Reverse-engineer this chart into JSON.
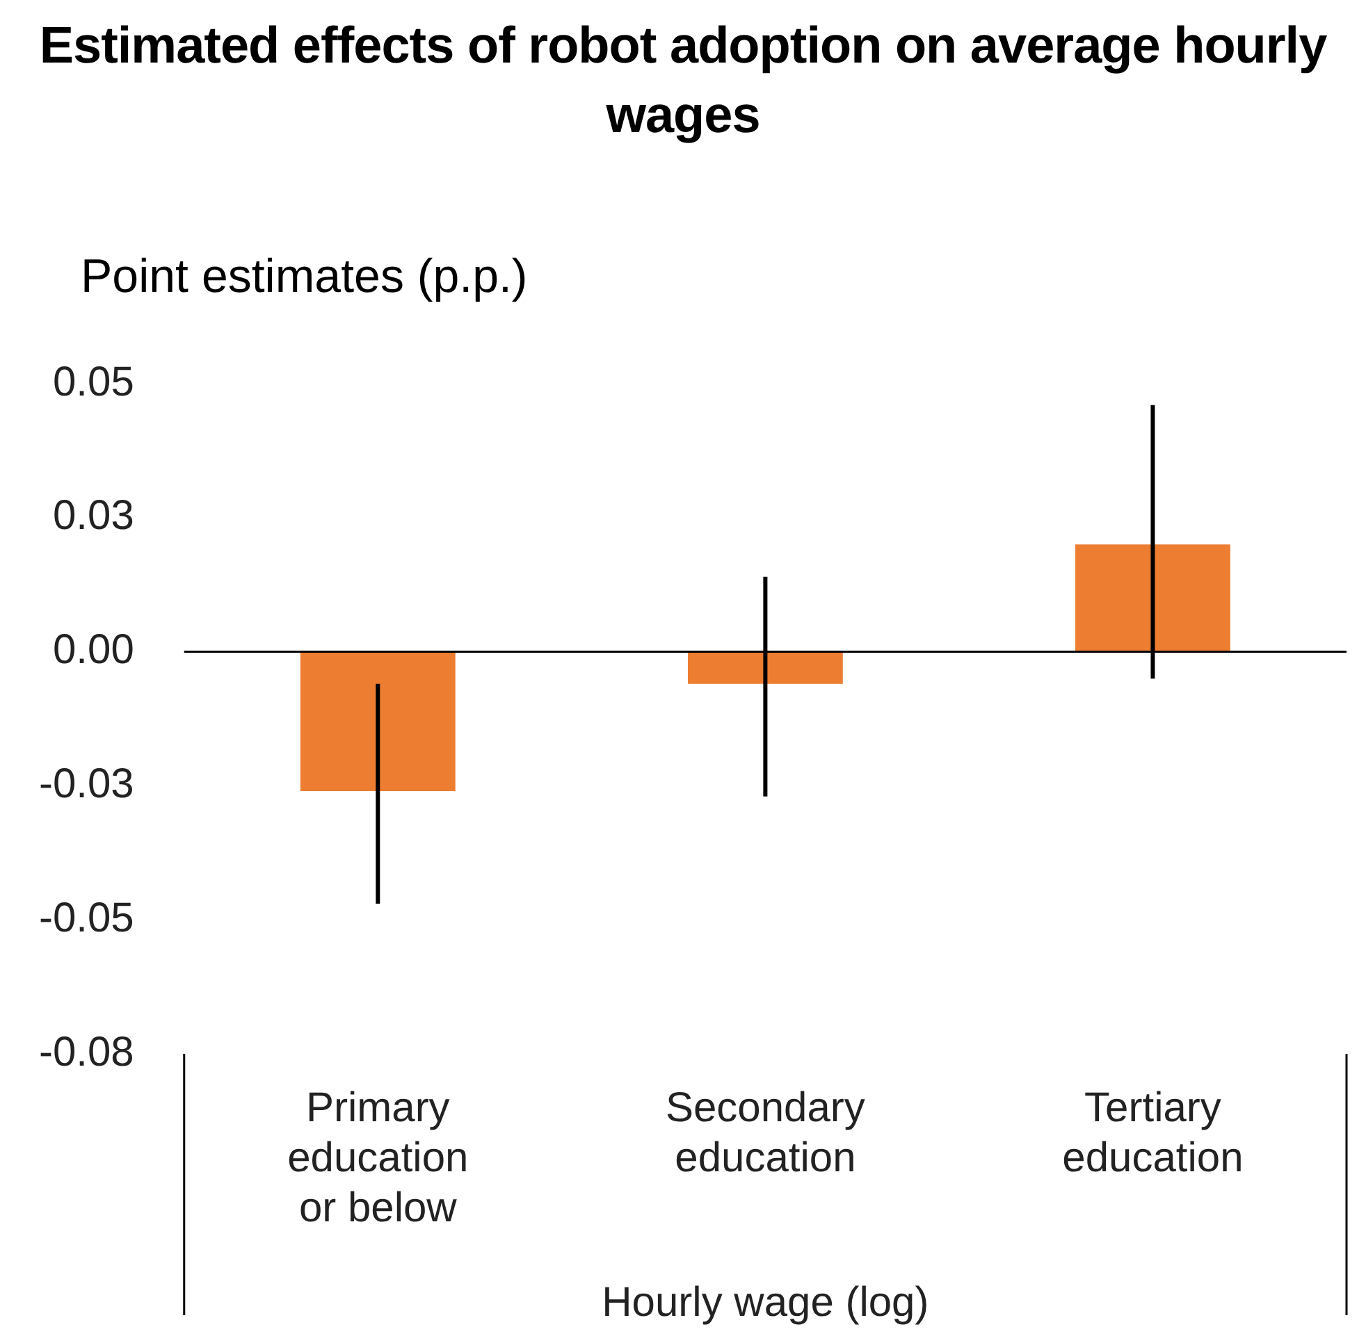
{
  "chart_data": {
    "type": "bar",
    "title": "Estimated effects of robot adoption on average hourly wages",
    "ylabel": "Point estimates (p.p.)",
    "xlabel": "Hourly wage (log)",
    "categories": [
      "Primary education or below",
      "Secondary education",
      "Tertiary education"
    ],
    "values": [
      -0.026,
      -0.006,
      0.02
    ],
    "errors": [
      [
        -0.047,
        -0.006
      ],
      [
        -0.027,
        0.014
      ],
      [
        -0.005,
        0.046
      ]
    ],
    "color": "#ed7d31",
    "ylim": [
      -0.075,
      0.05
    ],
    "yticks": [
      {
        "value": 0.05,
        "label": "0.05"
      },
      {
        "value": 0.025,
        "label": "0.03"
      },
      {
        "value": 0,
        "label": "0.00"
      },
      {
        "value": -0.025,
        "label": "-0.03"
      },
      {
        "value": -0.05,
        "label": "-0.05"
      },
      {
        "value": -0.075,
        "label": "-0.08"
      }
    ],
    "legend": false
  }
}
